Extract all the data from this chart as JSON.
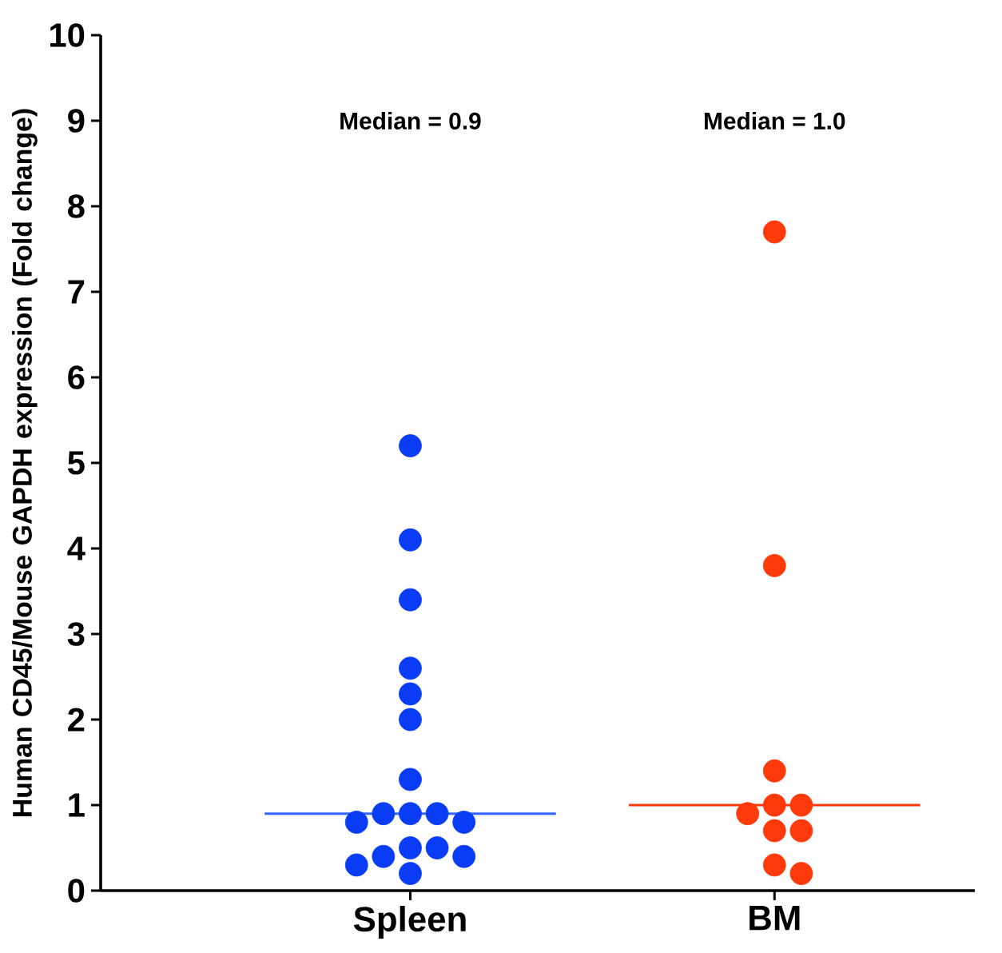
{
  "chart_data": {
    "type": "scatter",
    "ylabel": "Human CD45/Mouse GAPDH expression (Fold change)",
    "categories": [
      "Spleen",
      "BM"
    ],
    "series": [
      {
        "x": [
          "Spleen",
          "Spleen",
          "Spleen",
          "Spleen",
          "Spleen",
          "Spleen",
          "Spleen",
          "Spleen",
          "Spleen",
          "Spleen",
          "Spleen",
          "Spleen",
          "Spleen",
          "Spleen",
          "Spleen",
          "Spleen",
          "Spleen",
          "Spleen"
        ],
        "values": [
          5.2,
          4.1,
          3.4,
          2.6,
          2.3,
          2.0,
          1.3,
          0.9,
          0.9,
          0.9,
          0.8,
          0.8,
          0.5,
          0.5,
          0.4,
          0.4,
          0.3,
          0.2
        ],
        "color": "#0a3cf5"
      },
      {
        "x": [
          "BM",
          "BM",
          "BM",
          "BM",
          "BM",
          "BM",
          "BM",
          "BM",
          "BM",
          "BM"
        ],
        "values": [
          7.7,
          3.8,
          1.4,
          1.0,
          1.0,
          0.9,
          0.7,
          0.7,
          0.3,
          0.2
        ],
        "color": "#ff3a0a"
      }
    ],
    "ref_lines": [
      {
        "axis": "y",
        "value": 0.9,
        "color": "#3366ff"
      },
      {
        "axis": "y",
        "value": 1.0,
        "color": "#ff3a0a"
      }
    ],
    "annotations": [
      "Median = 0.9",
      "Median = 1.0"
    ],
    "ylim": [
      0,
      10
    ],
    "yticks": [
      0,
      1,
      2,
      3,
      4,
      5,
      6,
      7,
      8,
      9,
      10
    ],
    "grid": false
  }
}
